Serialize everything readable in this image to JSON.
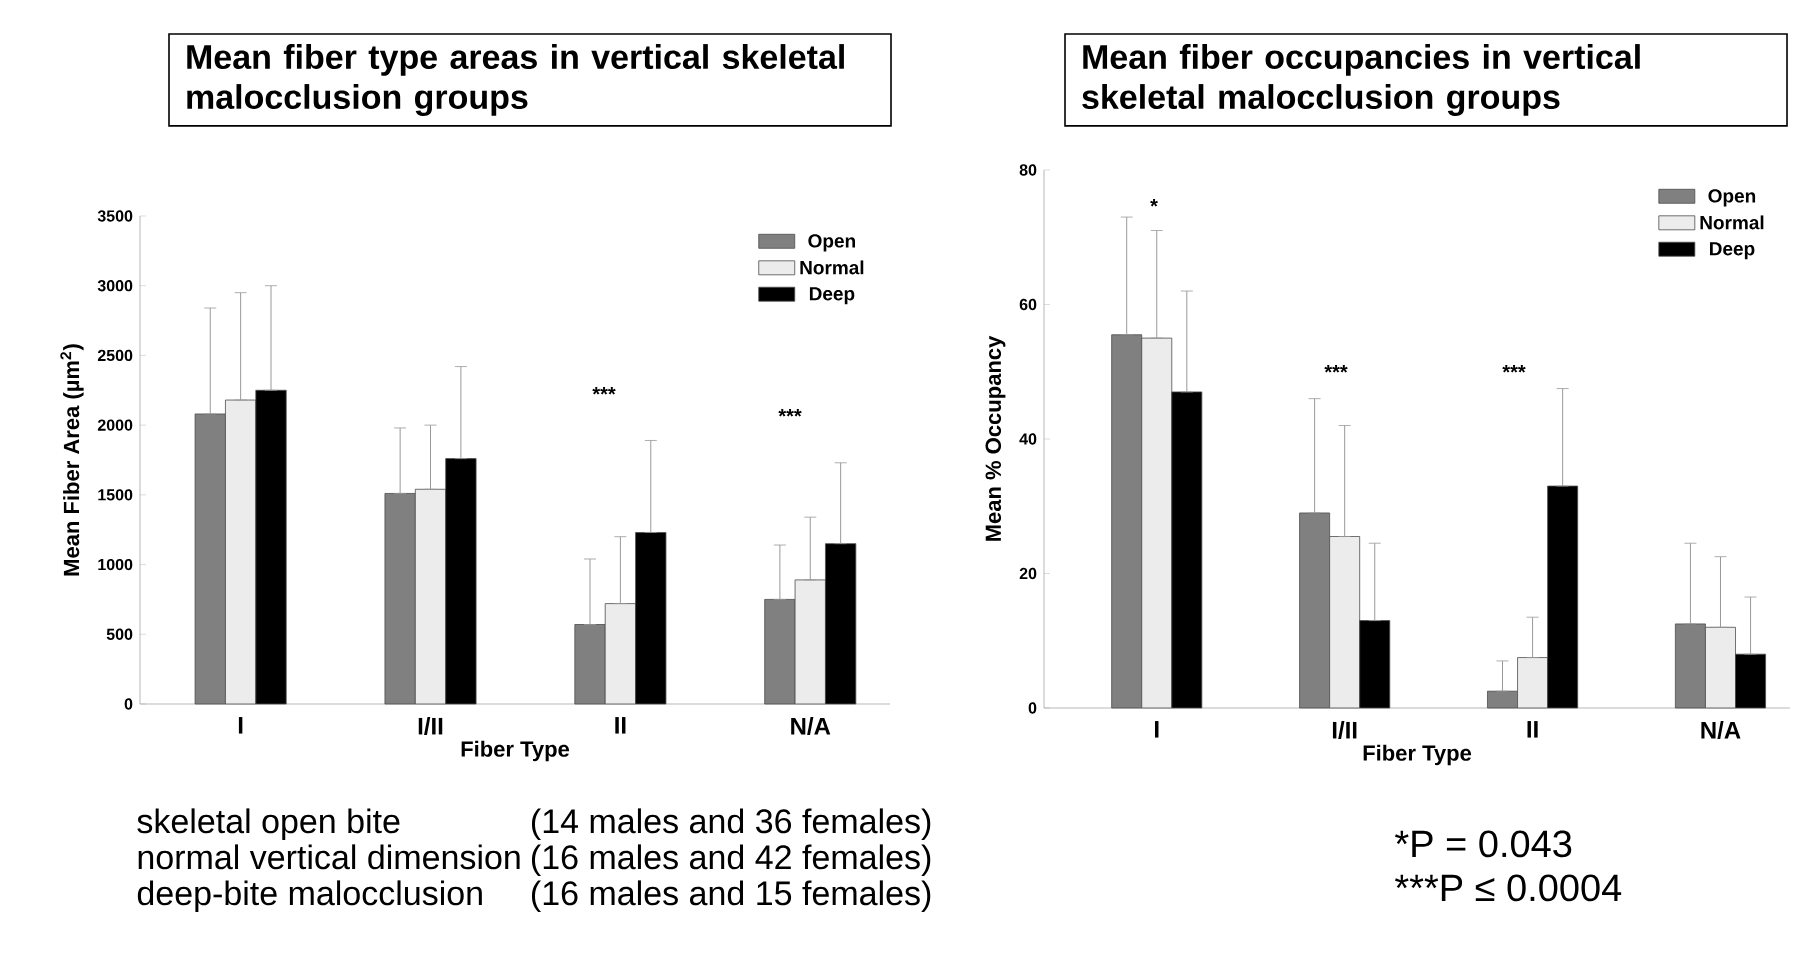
{
  "chart_data": [
    {
      "type": "bar",
      "title": "Mean fiber type areas  in vertical skeletal malocclusion groups",
      "xlabel": "Fiber Type",
      "ylabel": "Mean Fiber Area (µm$^{2}$)",
      "categories": [
        "I",
        "I/II",
        "II",
        "N/A"
      ],
      "series": [
        {
          "name": "Open",
          "color": "#808080",
          "values": [
            2080,
            1510,
            570,
            750
          ],
          "errors": [
            [
              2080,
              2840
            ],
            [
              1510,
              1980
            ],
            [
              570,
              1040
            ],
            [
              750,
              1140
            ]
          ]
        },
        {
          "name": "Normal",
          "color": "#ececec",
          "values": [
            2180,
            1540,
            720,
            890
          ],
          "errors": [
            [
              2180,
              2950
            ],
            [
              1540,
              2000
            ],
            [
              720,
              1200
            ],
            [
              890,
              1340
            ]
          ]
        },
        {
          "name": "Deep",
          "color": "#000000",
          "values": [
            2250,
            1760,
            1230,
            1150
          ],
          "errors": [
            [
              2250,
              3000
            ],
            [
              1760,
              2420
            ],
            [
              1230,
              1890
            ],
            [
              1150,
              1730
            ]
          ]
        }
      ],
      "ylim": [
        0,
        3500
      ],
      "yticks": [
        0,
        500,
        1000,
        1500,
        2000,
        2500,
        3000,
        3500
      ],
      "legend": "top right",
      "annotations": [
        "***",
        "***",
        "skeletal open bite",
        "(14 males and 36 females)",
        "normal vertical dimension",
        "(16 males and 42 females)",
        "deep-bite malocclusion",
        "(16 males and 15 females)"
      ]
    },
    {
      "type": "bar",
      "title": "Mean fiber occupancies in vertical skeletal malocclusion groups",
      "xlabel": "Fiber Type",
      "ylabel": "Mean % Occupancy",
      "categories": [
        "I",
        "I/II",
        "II",
        "N/A"
      ],
      "series": [
        {
          "name": "Open",
          "color": "#808080",
          "values": [
            55.5,
            29,
            2.5,
            12.5
          ],
          "errors": [
            [
              55.5,
              73
            ],
            [
              29,
              46
            ],
            [
              2.5,
              7
            ],
            [
              12.5,
              24.5
            ]
          ]
        },
        {
          "name": "Normal",
          "color": "#ececec",
          "values": [
            55,
            25.5,
            7.5,
            12
          ],
          "errors": [
            [
              55,
              71
            ],
            [
              25.5,
              42
            ],
            [
              7.5,
              13.5
            ],
            [
              12,
              22.5
            ]
          ]
        },
        {
          "name": "Deep",
          "color": "#000000",
          "values": [
            47,
            13,
            33,
            8
          ],
          "errors": [
            [
              47,
              62
            ],
            [
              13,
              24.5
            ],
            [
              33,
              47.5
            ],
            [
              8,
              16.5
            ]
          ]
        }
      ],
      "ylim": [
        0,
        80
      ],
      "yticks": [
        0,
        20,
        40,
        60,
        80
      ],
      "legend": "top right",
      "annotations": [
        "*",
        "***",
        "***",
        "*P =  0.043",
        "***P ≤  0.0004"
      ]
    }
  ]
}
